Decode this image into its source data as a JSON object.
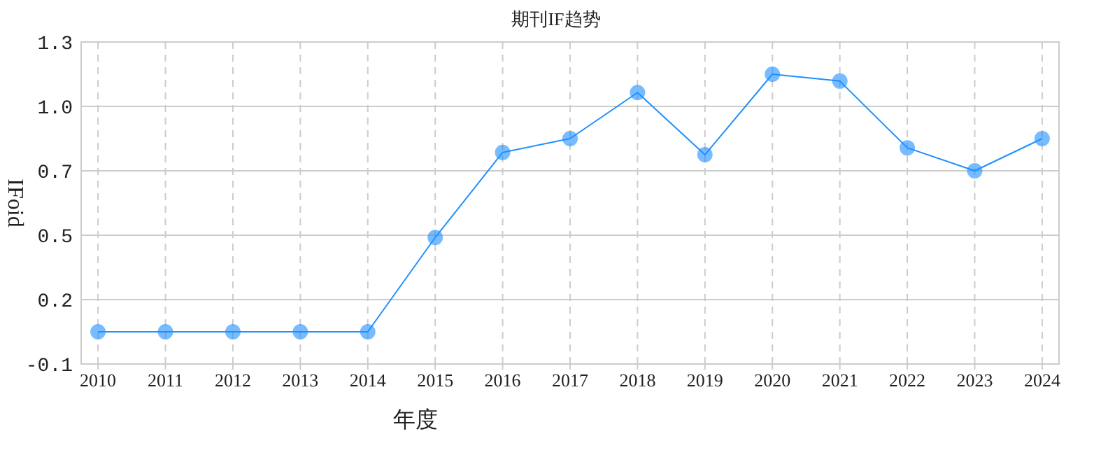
{
  "chart_data": {
    "type": "line",
    "title": "期刊IF趋势",
    "xlabel": "年度",
    "ylabel": "IFoid",
    "categories": [
      "2010",
      "2011",
      "2012",
      "2013",
      "2014",
      "2015",
      "2016",
      "2017",
      "2018",
      "2019",
      "2020",
      "2021",
      "2022",
      "2023",
      "2024"
    ],
    "series": [
      {
        "color": "#1e90ff",
        "values": [
          0.04,
          0.04,
          0.04,
          0.04,
          0.04,
          0.45,
          0.82,
          0.88,
          1.08,
          0.81,
          1.16,
          1.13,
          0.84,
          0.74,
          0.88
        ]
      }
    ],
    "ylim": [
      -0.1,
      1.3
    ],
    "yticks": [
      -0.1,
      {
        "value": 0.18,
        "label": "0.2"
      },
      {
        "value": 0.46,
        "label": "0.5"
      },
      {
        "value": 0.74,
        "label": "0.7"
      },
      {
        "value": 1.02,
        "label": "1.0"
      },
      1.3
    ],
    "grid": true,
    "marker": "circle",
    "line_style": "solid"
  }
}
